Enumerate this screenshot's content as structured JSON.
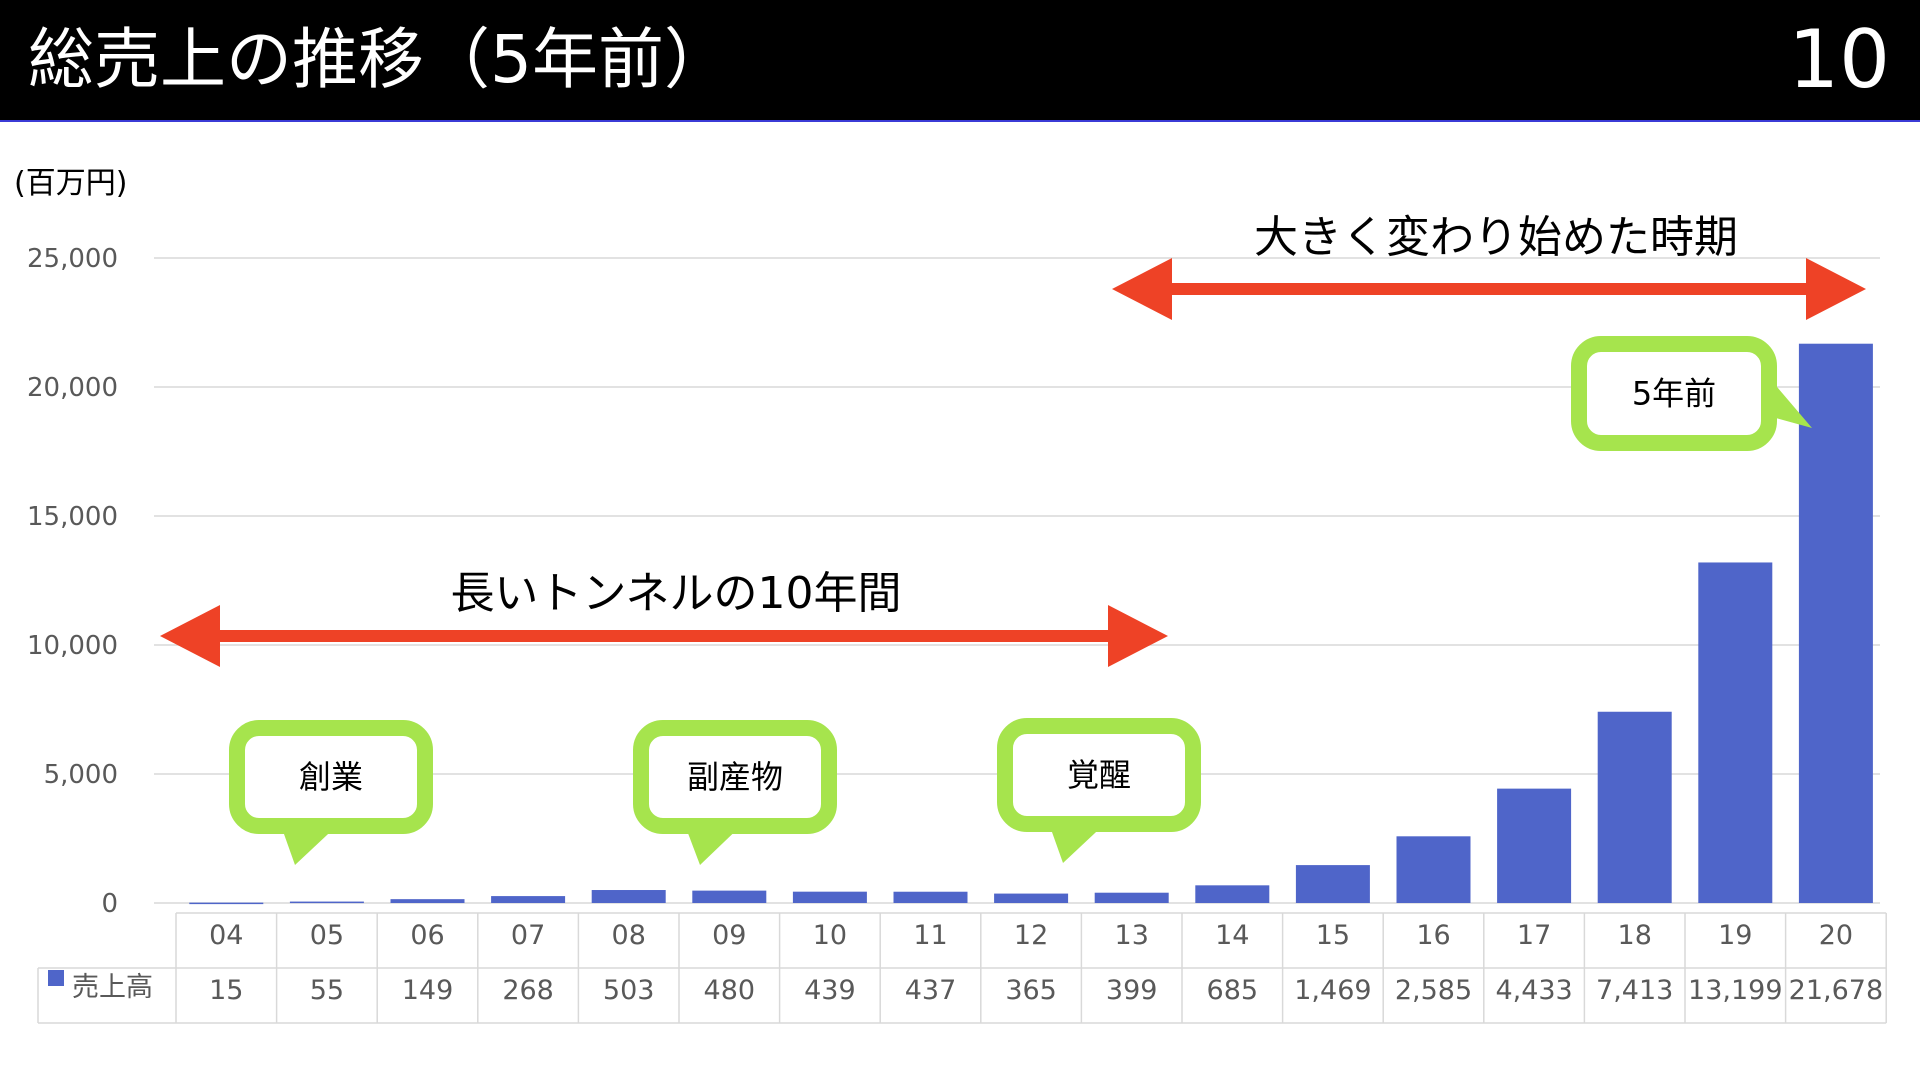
{
  "header": {
    "title": "総売上の推移（5年前）",
    "slide_number": "10"
  },
  "unit_label": "(百万円)",
  "colors": {
    "bar": "#4f65c9",
    "arrow": "#ee4226",
    "bubble": "#a6e44d",
    "header_bg": "#000000"
  },
  "annotations": {
    "tunnel_label": "長いトンネルの10年間",
    "change_label": "大きく変わり始めた時期"
  },
  "callouts": [
    {
      "text": "創業",
      "category": "05"
    },
    {
      "text": "副産物",
      "category": "09"
    },
    {
      "text": "覚醒",
      "category": "12"
    },
    {
      "text": "5年前",
      "category": "20"
    }
  ],
  "chart_data": {
    "type": "bar",
    "categories": [
      "04",
      "05",
      "06",
      "07",
      "08",
      "09",
      "10",
      "11",
      "12",
      "13",
      "14",
      "15",
      "16",
      "17",
      "18",
      "19",
      "20"
    ],
    "series": [
      {
        "name": "売上高",
        "values": [
          15,
          55,
          149,
          268,
          503,
          480,
          439,
          437,
          365,
          399,
          685,
          1469,
          2585,
          4433,
          7413,
          13199,
          21678
        ],
        "labels": [
          "15",
          "55",
          "149",
          "268",
          "503",
          "480",
          "439",
          "437",
          "365",
          "399",
          "685",
          "1,469",
          "2,585",
          "4,433",
          "7,413",
          "13,199",
          "21,678"
        ]
      }
    ],
    "yticks": [
      "0",
      "5,000",
      "10,000",
      "15,000",
      "20,000",
      "25,000"
    ],
    "ylim": [
      0,
      25000
    ],
    "grid": true,
    "legend": "data-table"
  }
}
